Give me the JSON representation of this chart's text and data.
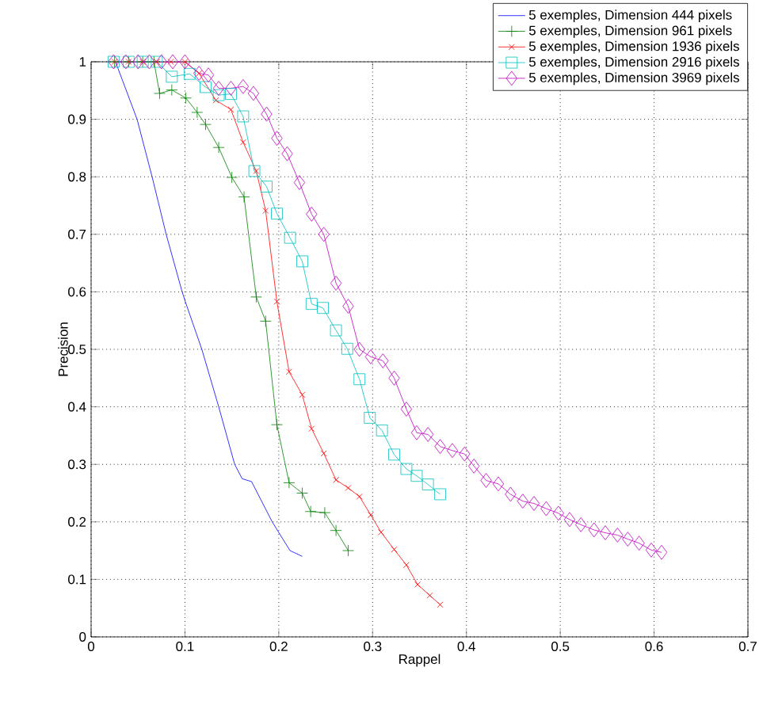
{
  "chart_data": {
    "type": "line",
    "xlabel": "Rappel",
    "ylabel": "Precision",
    "xlim": [
      0,
      0.7
    ],
    "xticks": [
      0,
      0.1,
      0.2,
      0.3,
      0.4,
      0.5,
      0.6,
      0.7
    ],
    "ylim": [
      0,
      1
    ],
    "yticks": [
      0,
      0.1,
      0.2,
      0.3,
      0.4,
      0.5,
      0.6,
      0.7,
      0.8,
      0.9,
      1
    ],
    "grid": true,
    "legend": "top right",
    "series": [
      {
        "name": "5 exemples, Dimension 444 pixels",
        "color": "#0000ff",
        "marker": "none",
        "x": [
          0.026,
          0.049,
          0.065,
          0.08,
          0.097,
          0.101,
          0.118,
          0.136,
          0.153,
          0.161,
          0.171,
          0.193,
          0.212,
          0.225
        ],
        "values": [
          1,
          0.9,
          0.8,
          0.7,
          0.6,
          0.58,
          0.5,
          0.4,
          0.3,
          0.275,
          0.27,
          0.2,
          0.15,
          0.14
        ]
      },
      {
        "name": "5 exemples, Dimension 961 pixels",
        "color": "#008000",
        "marker": "plus",
        "x": [
          0.025,
          0.04,
          0.055,
          0.067,
          0.073,
          0.086,
          0.101,
          0.113,
          0.122,
          0.136,
          0.15,
          0.163,
          0.176,
          0.186,
          0.198,
          0.211,
          0.225,
          0.234,
          0.249,
          0.261,
          0.274
        ],
        "values": [
          1,
          1,
          1,
          1,
          0.945,
          0.951,
          0.937,
          0.912,
          0.891,
          0.851,
          0.799,
          0.765,
          0.591,
          0.549,
          0.369,
          0.268,
          0.25,
          0.218,
          0.216,
          0.185,
          0.15
        ]
      },
      {
        "name": "5 exemples, Dimension 1936 pixels",
        "color": "#ff0000",
        "marker": "cross",
        "x": [
          0.025,
          0.04,
          0.055,
          0.07,
          0.085,
          0.1,
          0.115,
          0.133,
          0.149,
          0.162,
          0.176,
          0.186,
          0.198,
          0.211,
          0.225,
          0.235,
          0.248,
          0.261,
          0.274,
          0.286,
          0.298,
          0.309,
          0.323,
          0.336,
          0.348,
          0.361,
          0.372
        ],
        "values": [
          1,
          1,
          1,
          1,
          1,
          1,
          0.98,
          0.933,
          0.917,
          0.86,
          0.81,
          0.741,
          0.583,
          0.461,
          0.421,
          0.362,
          0.319,
          0.273,
          0.259,
          0.244,
          0.212,
          0.182,
          0.152,
          0.125,
          0.091,
          0.072,
          0.056
        ]
      },
      {
        "name": "5 exemples, Dimension 2916 pixels",
        "color": "#00bfbf",
        "marker": "square",
        "x": [
          0.024,
          0.04,
          0.055,
          0.07,
          0.086,
          0.105,
          0.122,
          0.136,
          0.149,
          0.162,
          0.174,
          0.187,
          0.198,
          0.212,
          0.225,
          0.235,
          0.247,
          0.261,
          0.273,
          0.286,
          0.297,
          0.31,
          0.323,
          0.336,
          0.347,
          0.359,
          0.372
        ],
        "values": [
          1,
          1,
          1,
          1,
          0.974,
          0.979,
          0.956,
          0.942,
          0.944,
          0.905,
          0.81,
          0.783,
          0.736,
          0.694,
          0.653,
          0.579,
          0.572,
          0.533,
          0.501,
          0.448,
          0.381,
          0.359,
          0.317,
          0.292,
          0.28,
          0.265,
          0.248
        ]
      },
      {
        "name": "5 exemples, Dimension 3969 pixels",
        "color": "#bf00bf",
        "marker": "diamond",
        "x": [
          0.024,
          0.037,
          0.05,
          0.062,
          0.075,
          0.087,
          0.1,
          0.115,
          0.125,
          0.136,
          0.149,
          0.162,
          0.173,
          0.187,
          0.198,
          0.209,
          0.222,
          0.235,
          0.248,
          0.261,
          0.274,
          0.286,
          0.298,
          0.311,
          0.323,
          0.336,
          0.347,
          0.359,
          0.372,
          0.385,
          0.398,
          0.408,
          0.421,
          0.434,
          0.447,
          0.46,
          0.472,
          0.485,
          0.498,
          0.51,
          0.522,
          0.536,
          0.548,
          0.561,
          0.572,
          0.584,
          0.597,
          0.608
        ],
        "values": [
          1,
          1,
          1,
          1,
          1,
          1,
          1,
          0.98,
          0.977,
          0.954,
          0.954,
          0.957,
          0.945,
          0.909,
          0.867,
          0.84,
          0.79,
          0.735,
          0.7,
          0.615,
          0.575,
          0.5,
          0.487,
          0.48,
          0.45,
          0.396,
          0.355,
          0.352,
          0.331,
          0.324,
          0.318,
          0.297,
          0.272,
          0.266,
          0.248,
          0.236,
          0.232,
          0.223,
          0.215,
          0.204,
          0.195,
          0.186,
          0.181,
          0.177,
          0.17,
          0.163,
          0.151,
          0.147
        ]
      }
    ]
  }
}
